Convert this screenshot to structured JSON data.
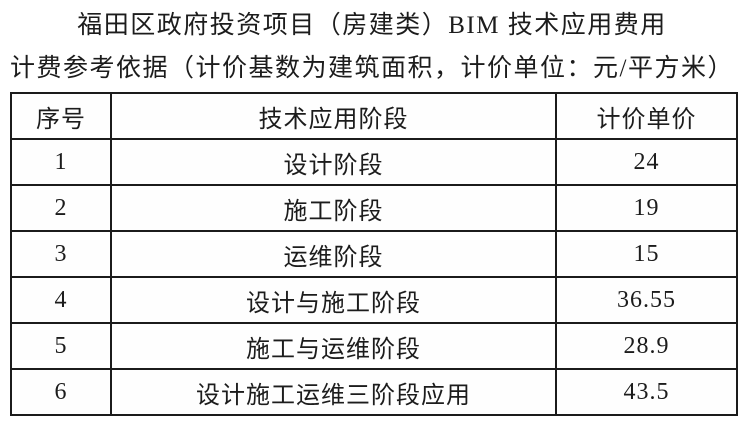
{
  "title": {
    "line1": "福田区政府投资项目（房建类）BIM 技术应用费用",
    "line2": "计费参考依据（计价基数为建筑面积，计价单位：元/平方米）"
  },
  "table": {
    "headers": [
      "序号",
      "技术应用阶段",
      "计价单价"
    ],
    "rows": [
      [
        "1",
        "设计阶段",
        "24"
      ],
      [
        "2",
        "施工阶段",
        "19"
      ],
      [
        "3",
        "运维阶段",
        "15"
      ],
      [
        "4",
        "设计与施工阶段",
        "36.55"
      ],
      [
        "5",
        "施工与运维阶段",
        "28.9"
      ],
      [
        "6",
        "设计施工运维三阶段应用",
        "43.5"
      ]
    ]
  },
  "colors": {
    "border": "#1b1b1b",
    "text": "#1c1c1c",
    "background": "#ffffff"
  }
}
